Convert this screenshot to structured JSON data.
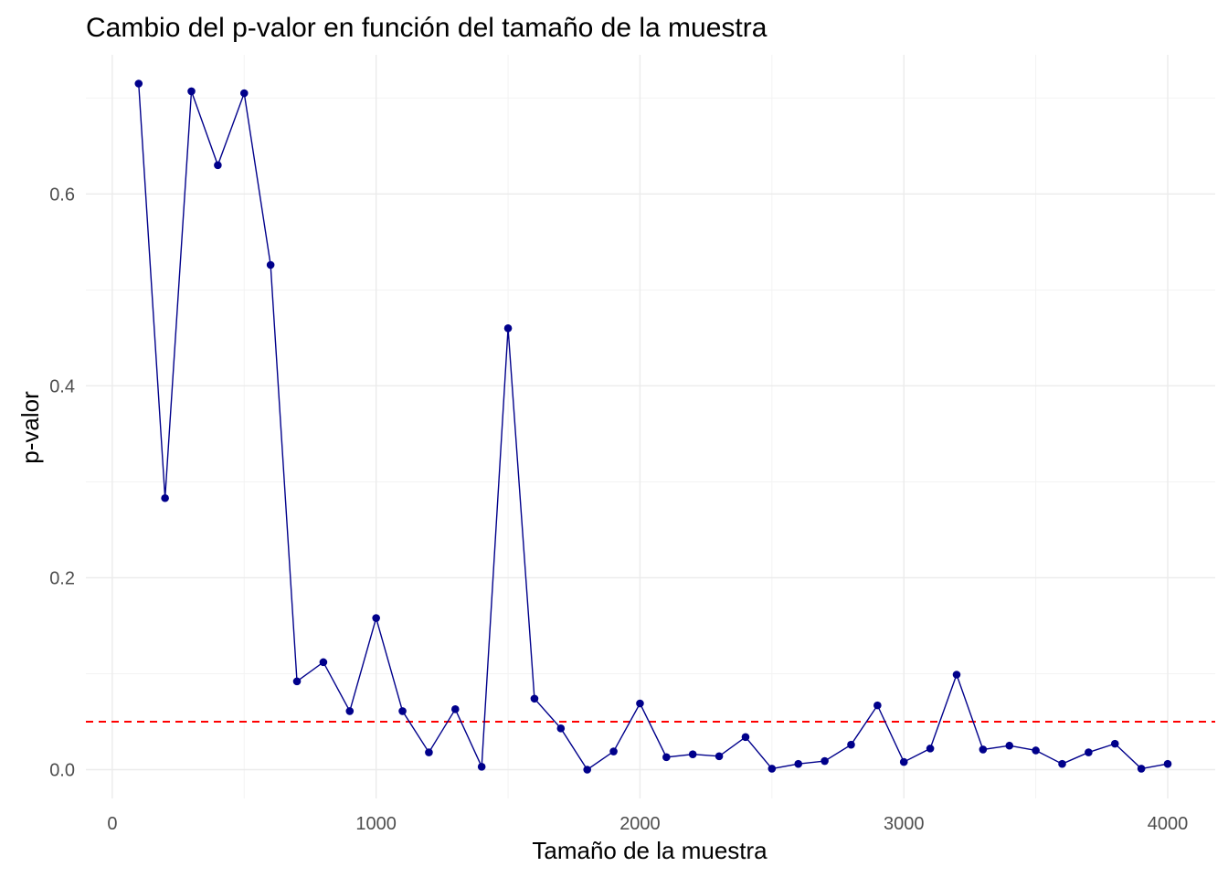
{
  "chart_data": {
    "type": "line",
    "title": "Cambio del p-valor en función del tamaño de la muestra",
    "xlabel": "Tamaño de la muestra",
    "ylabel": "p-valor",
    "xlim": [
      -100,
      4180
    ],
    "ylim": [
      -0.03,
      0.745
    ],
    "x_ticks": [
      0,
      1000,
      2000,
      3000,
      4000
    ],
    "x_tick_labels": [
      "0",
      "1000",
      "2000",
      "3000",
      "4000"
    ],
    "x_minor_ticks": [
      500,
      1500,
      2500,
      3500
    ],
    "y_ticks": [
      0.0,
      0.2,
      0.4,
      0.6
    ],
    "y_tick_labels": [
      "0.0",
      "0.2",
      "0.4",
      "0.6"
    ],
    "y_minor_ticks": [
      0.1,
      0.3,
      0.5,
      0.7
    ],
    "grid": true,
    "reference_line": {
      "y": 0.05,
      "color": "#ff0000",
      "style": "dashed"
    },
    "series": [
      {
        "color": "#00008b",
        "x": [
          100,
          200,
          300,
          400,
          500,
          600,
          700,
          800,
          900,
          1000,
          1100,
          1200,
          1300,
          1400,
          1500,
          1600,
          1700,
          1800,
          1900,
          2000,
          2100,
          2200,
          2300,
          2400,
          2500,
          2600,
          2700,
          2800,
          2900,
          3000,
          3100,
          3200,
          3300,
          3400,
          3500,
          3600,
          3700,
          3800,
          3900,
          4000
        ],
        "values": [
          0.715,
          0.283,
          0.707,
          0.63,
          0.705,
          0.526,
          0.092,
          0.112,
          0.061,
          0.158,
          0.061,
          0.018,
          0.063,
          0.003,
          0.46,
          0.074,
          0.043,
          0.0,
          0.019,
          0.069,
          0.013,
          0.016,
          0.014,
          0.034,
          0.001,
          0.006,
          0.009,
          0.026,
          0.067,
          0.008,
          0.022,
          0.099,
          0.021,
          0.025,
          0.02,
          0.006,
          0.018,
          0.027,
          0.001,
          0.006
        ]
      }
    ]
  }
}
